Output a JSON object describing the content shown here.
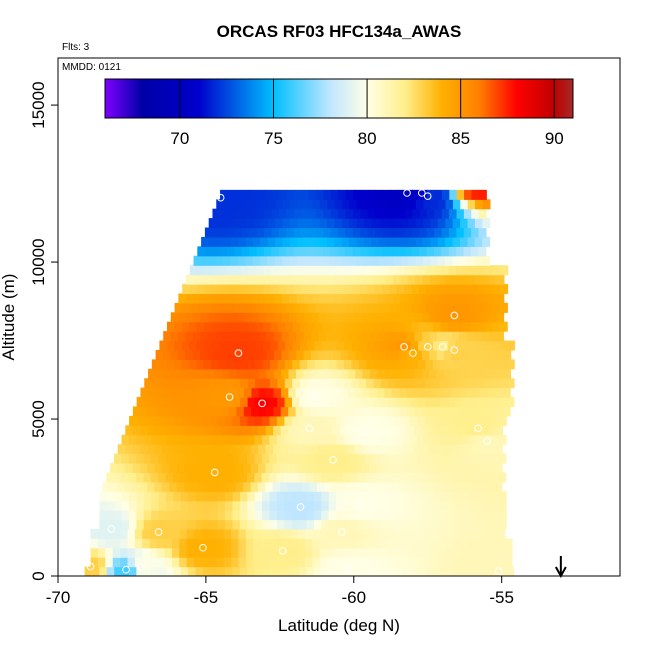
{
  "chart_data": {
    "type": "heatmap",
    "title": "ORCAS RF03 HFC134a_AWAS",
    "flights_label": "Flts: 3",
    "date_label": "MMDD: 0121",
    "xlabel": "Latitude (deg N)",
    "ylabel": "Altitude (m)",
    "xlim": [
      -70,
      -51
    ],
    "ylim": [
      0,
      16500
    ],
    "x_ticks": [
      -70,
      -65,
      -60,
      -55
    ],
    "y_ticks": [
      0,
      5000,
      10000,
      15000
    ],
    "colorbar": {
      "range": [
        66,
        91
      ],
      "ticks": [
        70,
        75,
        80,
        85,
        90
      ],
      "stops": [
        {
          "value": 66,
          "color": "#7f00ff"
        },
        {
          "value": 68,
          "color": "#0000a8"
        },
        {
          "value": 71,
          "color": "#0000cc"
        },
        {
          "value": 75,
          "color": "#00bfff"
        },
        {
          "value": 78,
          "color": "#bfe6ff"
        },
        {
          "value": 80,
          "color": "#ffffe6"
        },
        {
          "value": 82,
          "color": "#ffef8c"
        },
        {
          "value": 84,
          "color": "#ffb000"
        },
        {
          "value": 86,
          "color": "#ff7f00"
        },
        {
          "value": 88,
          "color": "#ff0000"
        },
        {
          "value": 90,
          "color": "#c00000"
        },
        {
          "value": 91,
          "color": "#a52a2a"
        }
      ]
    },
    "samples": [
      {
        "lat": -64.5,
        "alt": 12050,
        "value": 72
      },
      {
        "lat": -58.2,
        "alt": 12200,
        "value": 70
      },
      {
        "lat": -57.7,
        "alt": 12200,
        "value": 71
      },
      {
        "lat": -57.5,
        "alt": 12100,
        "value": 72
      },
      {
        "lat": -55.9,
        "alt": 12500,
        "value": 88
      },
      {
        "lat": -56.6,
        "alt": 8300,
        "value": 85
      },
      {
        "lat": -63.9,
        "alt": 7100,
        "value": 87
      },
      {
        "lat": -58.3,
        "alt": 7300,
        "value": 85
      },
      {
        "lat": -58.0,
        "alt": 7100,
        "value": 84
      },
      {
        "lat": -57.5,
        "alt": 7300,
        "value": 83
      },
      {
        "lat": -57.0,
        "alt": 7300,
        "value": 82
      },
      {
        "lat": -56.6,
        "alt": 7200,
        "value": 83
      },
      {
        "lat": -64.2,
        "alt": 5700,
        "value": 85
      },
      {
        "lat": -63.1,
        "alt": 5500,
        "value": 88
      },
      {
        "lat": -61.3,
        "alt": 5700,
        "value": 80
      },
      {
        "lat": -61.5,
        "alt": 4700,
        "value": 81
      },
      {
        "lat": -55.8,
        "alt": 4700,
        "value": 82
      },
      {
        "lat": -55.5,
        "alt": 4300,
        "value": 81
      },
      {
        "lat": -59.6,
        "alt": 4600,
        "value": 80
      },
      {
        "lat": -60.7,
        "alt": 3700,
        "value": 82
      },
      {
        "lat": -64.7,
        "alt": 3300,
        "value": 84
      },
      {
        "lat": -59.8,
        "alt": 2300,
        "value": 80
      },
      {
        "lat": -61.8,
        "alt": 2200,
        "value": 78
      },
      {
        "lat": -60.4,
        "alt": 1400,
        "value": 81
      },
      {
        "lat": -66.6,
        "alt": 1400,
        "value": 83
      },
      {
        "lat": -68.2,
        "alt": 1500,
        "value": 79
      },
      {
        "lat": -65.1,
        "alt": 900,
        "value": 84
      },
      {
        "lat": -62.4,
        "alt": 800,
        "value": 82
      },
      {
        "lat": -67.7,
        "alt": 200,
        "value": 76
      },
      {
        "lat": -68.9,
        "alt": 300,
        "value": 83
      },
      {
        "lat": -67.2,
        "alt": 300,
        "value": 80
      },
      {
        "lat": -60.2,
        "alt": 200,
        "value": 80
      },
      {
        "lat": -55.1,
        "alt": 150,
        "value": 81
      }
    ],
    "marker": {
      "lat": -53.0,
      "symbol": "down-arrow"
    }
  }
}
